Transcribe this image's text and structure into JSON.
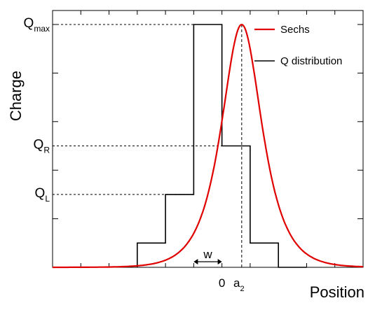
{
  "chart_data": {
    "type": "line",
    "xlabel": "Position",
    "ylabel": "Charge",
    "grid": false,
    "legend_placement": "top-right",
    "xlim": [
      -3,
      2.5
    ],
    "ylim": [
      0,
      1
    ],
    "x_tick_labels": [
      {
        "x": 0,
        "text": "0"
      },
      {
        "x": 0.35,
        "text": "a",
        "sub": "2"
      }
    ],
    "y_level_labels": [
      {
        "y": 1.0,
        "text": "Q",
        "sub": "max"
      },
      {
        "y": 0.5,
        "text": "Q",
        "sub": "R"
      },
      {
        "y": 0.3,
        "text": "Q",
        "sub": "L"
      }
    ],
    "annotations": {
      "width_label": "w",
      "width_from": -0.5,
      "width_to": 0,
      "peak_position_x": 0.35
    },
    "series": [
      {
        "name": "Sechs",
        "color": "#e00000",
        "function": "sech",
        "center": 0.35,
        "amplitude": 1.0,
        "scale": 0.32
      },
      {
        "name": "Q distribution",
        "color": "#000000",
        "type": "step",
        "bin_edges": [
          -1.5,
          -1.0,
          -0.5,
          0.0,
          0.5,
          1.0,
          1.5
        ],
        "values": [
          0.1,
          0.3,
          1.0,
          0.5,
          0.1,
          0.0
        ]
      }
    ]
  }
}
